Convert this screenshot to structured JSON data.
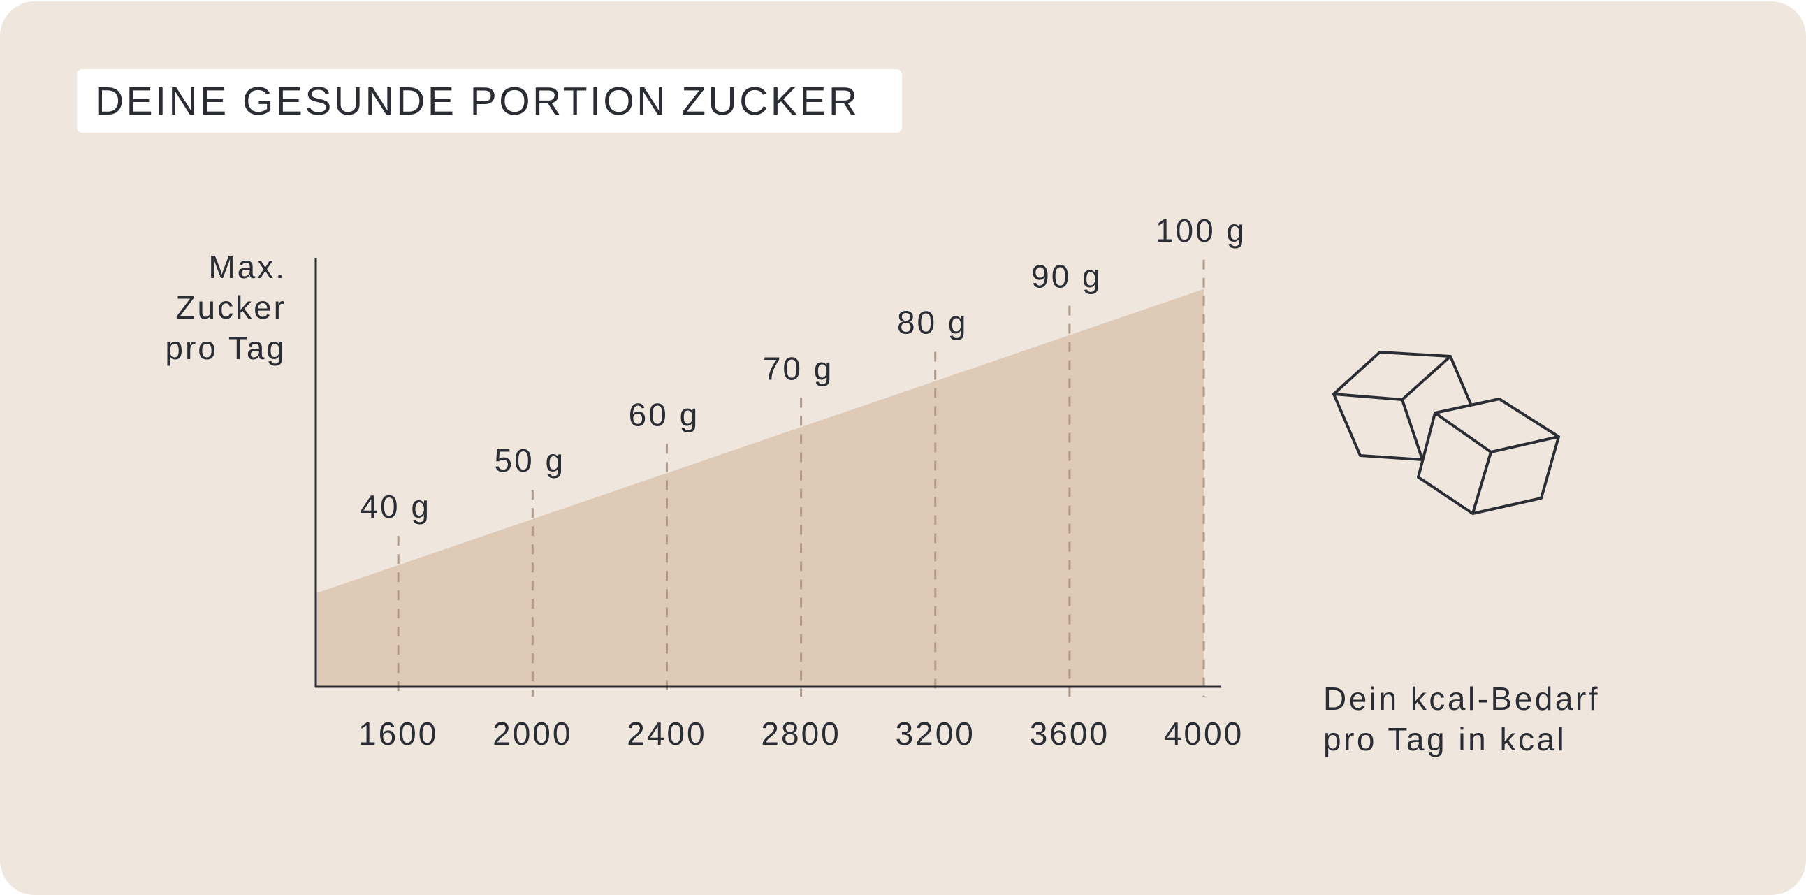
{
  "chart_data": {
    "type": "area",
    "title": "DEINE GESUNDE PORTION ZUCKER",
    "ylabel": [
      "Max.",
      "Zucker",
      "pro Tag"
    ],
    "xlabel": [
      "Dein kcal-Bedarf",
      "pro Tag in kcal"
    ],
    "x": [
      1600,
      2000,
      2400,
      2800,
      3200,
      3600,
      4000
    ],
    "x_tick_labels": [
      "1600",
      "2000",
      "2400",
      "2800",
      "3200",
      "3600",
      "4000"
    ],
    "values": [
      40,
      50,
      60,
      70,
      80,
      90,
      100
    ],
    "value_labels": [
      "40 g",
      "50 g",
      "60 g",
      "70 g",
      "80 g",
      "90 g",
      "100 g"
    ],
    "area_start": {
      "x": 1354,
      "y": 33.9
    },
    "xlim": [
      1354,
      4052
    ],
    "ylim": [
      13.6,
      106.8
    ],
    "grid": false,
    "legend": "none"
  },
  "colors": {
    "background": "#efe6de",
    "area": "#dfcab8",
    "dash": "#b39a84",
    "text": "#2b2d35",
    "title_box": "#ffffff"
  },
  "decoration": {
    "icon": "sugar-cubes-icon"
  }
}
